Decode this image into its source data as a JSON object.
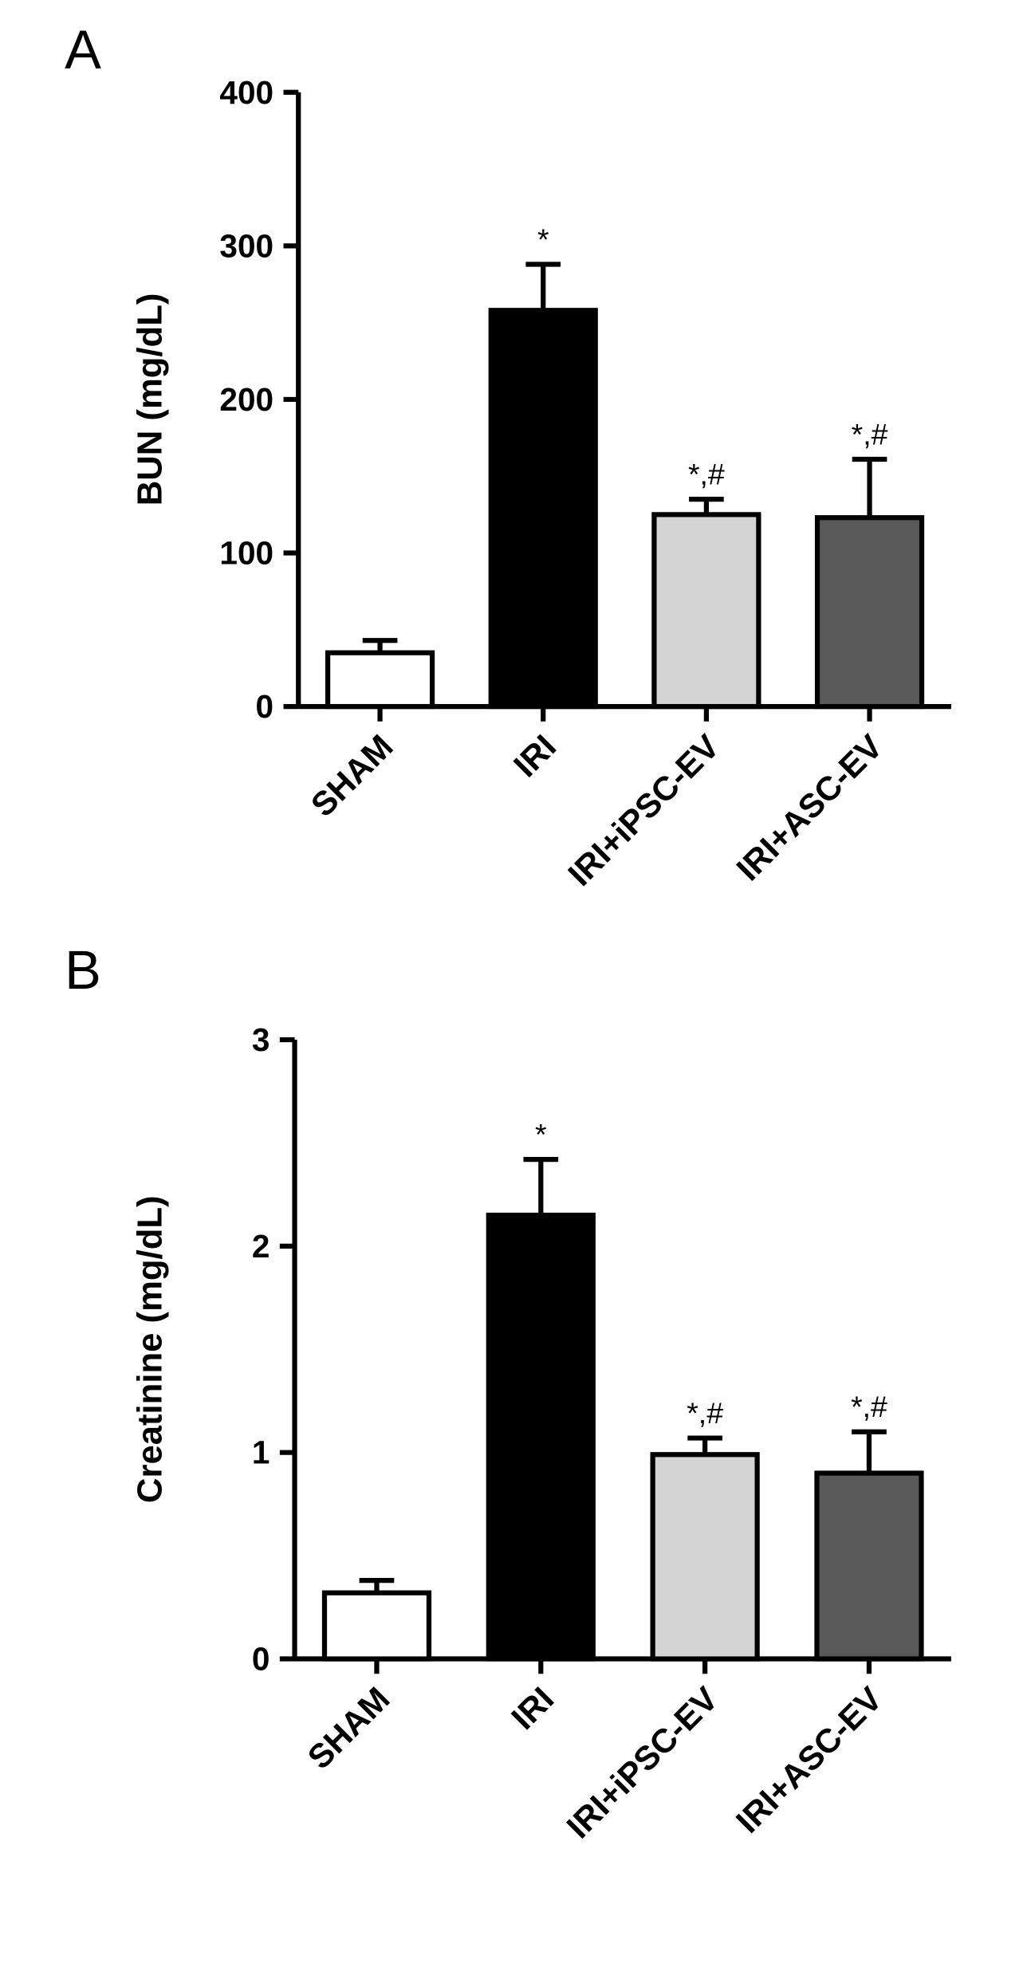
{
  "chart_data": [
    {
      "type": "bar",
      "panel_label": "A",
      "y_label": "BUN (mg/dL)",
      "categories": [
        "SHAM",
        "IRI",
        "IRI+iPSC-EV",
        "IRI+ASC-EV"
      ],
      "values": [
        35,
        258,
        125,
        123
      ],
      "errors": [
        8,
        30,
        10,
        38
      ],
      "annotations": [
        null,
        "*",
        "*,#",
        "*,#"
      ],
      "colors": [
        "#ffffff",
        "#000000",
        "#d4d4d4",
        "#595959"
      ],
      "ylim": [
        0,
        400
      ],
      "yticks": [
        0,
        100,
        200,
        300,
        400
      ]
    },
    {
      "type": "bar",
      "panel_label": "B",
      "y_label": "Creatinine (mg/dL)",
      "categories": [
        "SHAM",
        "IRI",
        "IRI+iPSC-EV",
        "IRI+ASC-EV"
      ],
      "values": [
        0.32,
        2.15,
        0.99,
        0.9
      ],
      "errors": [
        0.06,
        0.27,
        0.08,
        0.2
      ],
      "annotations": [
        null,
        "*",
        "*,#",
        "*,#"
      ],
      "colors": [
        "#ffffff",
        "#000000",
        "#d4d4d4",
        "#595959"
      ],
      "ylim": [
        0,
        3
      ],
      "yticks": [
        0,
        1,
        2,
        3
      ]
    }
  ]
}
